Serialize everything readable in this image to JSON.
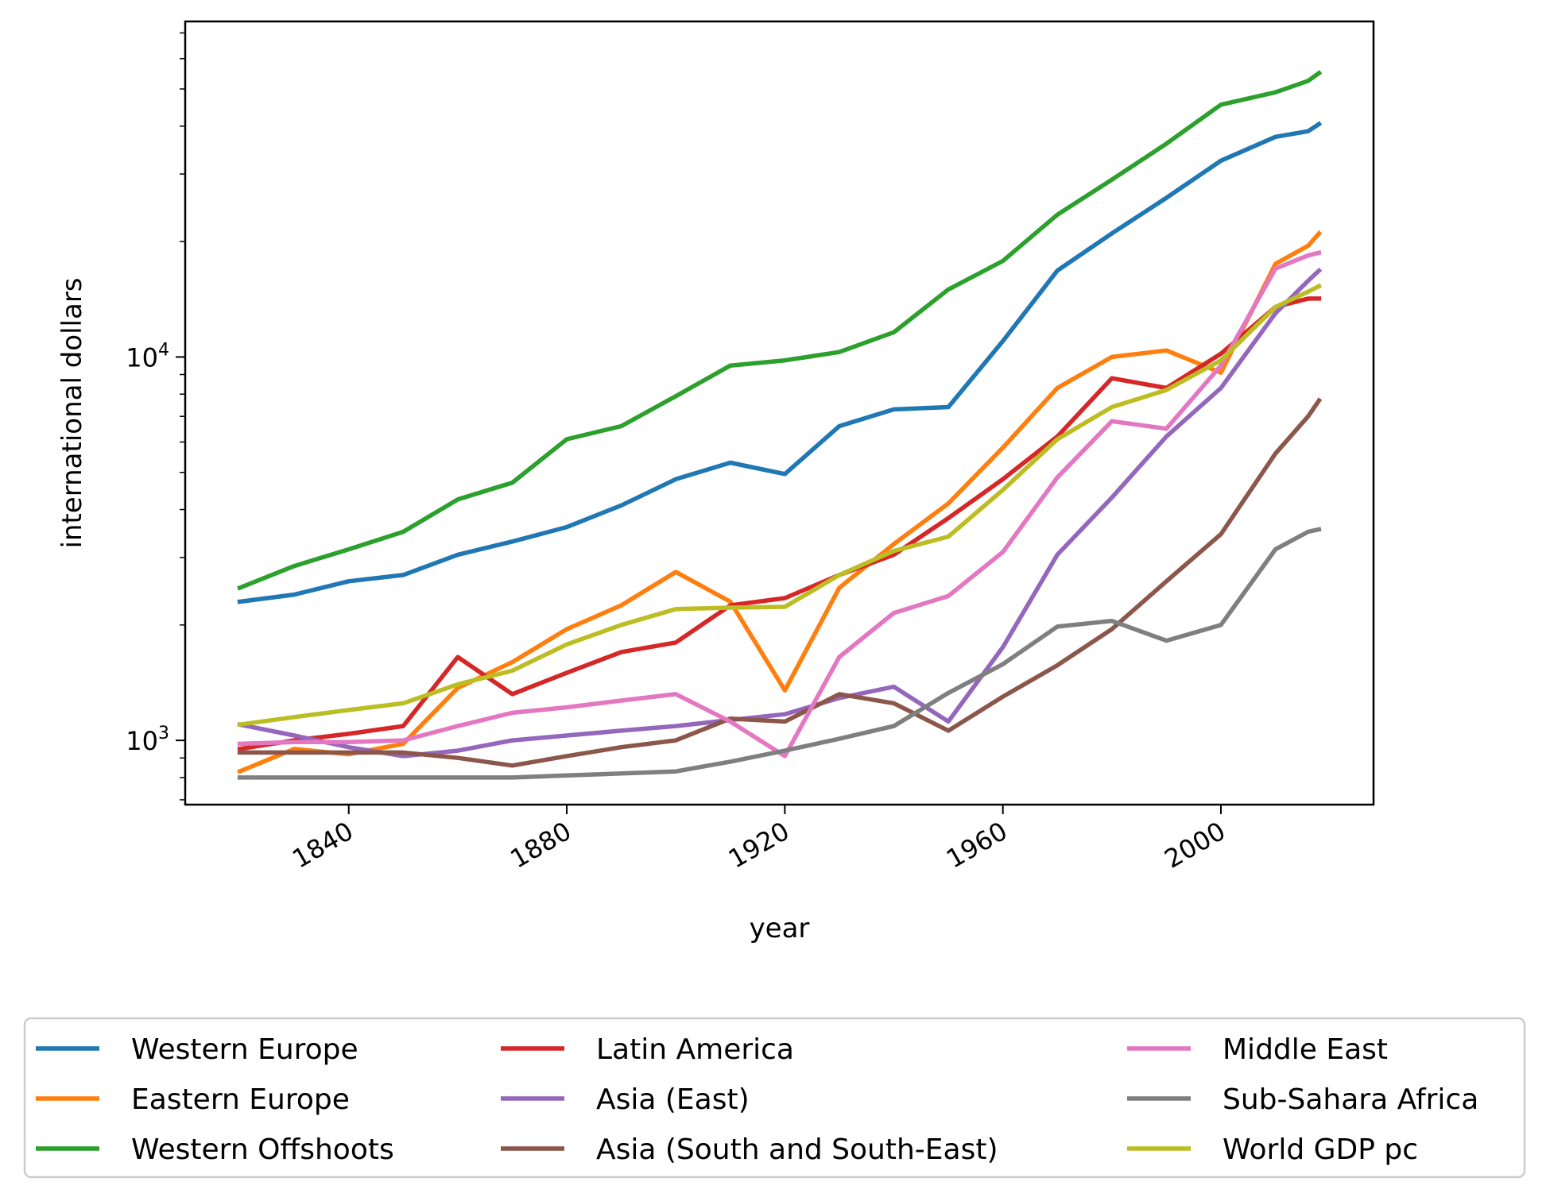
{
  "chart_data": {
    "type": "line",
    "title": "",
    "xlabel": "year",
    "ylabel": "international dollars",
    "yscale": "log",
    "xlim": [
      1810,
      2028
    ],
    "ylim": [
      680,
      75000
    ],
    "xticks": [
      1840,
      1880,
      1920,
      1960,
      2000
    ],
    "xtick_labels": [
      "1840",
      "1880",
      "1920",
      "1960",
      "2000"
    ],
    "xtick_rotation": 30,
    "yticks": [
      1000,
      10000
    ],
    "ytick_labels": [
      {
        "base": "10",
        "exp": "3"
      },
      {
        "base": "10",
        "exp": "4"
      }
    ],
    "grid": false,
    "legend": {
      "placement": "below",
      "columns": 3
    },
    "x": [
      1820,
      1830,
      1840,
      1850,
      1860,
      1870,
      1880,
      1890,
      1900,
      1910,
      1920,
      1930,
      1940,
      1950,
      1960,
      1970,
      1980,
      1990,
      2000,
      2010,
      2016,
      2018
    ],
    "series": [
      {
        "name": "Western Europe",
        "color": "#1f77b4",
        "values": [
          2300,
          2400,
          2600,
          2700,
          3050,
          3300,
          3600,
          4100,
          4800,
          5300,
          4950,
          6600,
          7300,
          7400,
          11000,
          16800,
          21000,
          26000,
          32500,
          37500,
          38800,
          40500
        ]
      },
      {
        "name": "Eastern Europe",
        "color": "#ff7f0e",
        "values": [
          830,
          950,
          920,
          980,
          1370,
          1600,
          1950,
          2250,
          2750,
          2300,
          1350,
          2500,
          3250,
          4150,
          5800,
          8300,
          10000,
          10400,
          9100,
          17500,
          19500,
          21000
        ]
      },
      {
        "name": "Western Offshoots",
        "color": "#2ca02c",
        "values": [
          2500,
          2850,
          3150,
          3500,
          4250,
          4700,
          6100,
          6600,
          7900,
          9500,
          9800,
          10300,
          11600,
          15000,
          17800,
          23500,
          29000,
          36000,
          45500,
          49000,
          52500,
          55000
        ]
      },
      {
        "name": "Latin America",
        "color": "#d62728",
        "values": [
          950,
          1000,
          1040,
          1090,
          1650,
          1320,
          1500,
          1700,
          1800,
          2250,
          2350,
          2700,
          3050,
          3800,
          4800,
          6200,
          8800,
          8300,
          10200,
          13500,
          14200,
          14200
        ]
      },
      {
        "name": "Asia (East)",
        "color": "#9467bd",
        "values": [
          1100,
          1030,
          960,
          910,
          940,
          1000,
          1030,
          1060,
          1090,
          1130,
          1170,
          1290,
          1380,
          1120,
          1750,
          3050,
          4300,
          6200,
          8300,
          13000,
          15800,
          16800
        ]
      },
      {
        "name": "Asia (South and South-East)",
        "color": "#8c564b",
        "values": [
          930,
          930,
          930,
          930,
          900,
          860,
          910,
          960,
          1000,
          1140,
          1120,
          1320,
          1250,
          1060,
          1300,
          1570,
          1950,
          2600,
          3450,
          5600,
          7000,
          7700
        ]
      },
      {
        "name": "Middle East",
        "color": "#e377c2",
        "values": [
          980,
          990,
          990,
          1000,
          1090,
          1180,
          1220,
          1270,
          1320,
          1120,
          910,
          1650,
          2150,
          2380,
          3100,
          4850,
          6800,
          6500,
          9500,
          17000,
          18400,
          18700
        ]
      },
      {
        "name": "Sub-Sahara Africa",
        "color": "#7f7f7f",
        "values": [
          800,
          800,
          800,
          800,
          800,
          800,
          810,
          820,
          830,
          880,
          940,
          1010,
          1090,
          1330,
          1580,
          1980,
          2050,
          1820,
          2000,
          3150,
          3500,
          3550
        ]
      },
      {
        "name": "World GDP pc",
        "color": "#bcbd22",
        "values": [
          1100,
          1150,
          1200,
          1250,
          1400,
          1520,
          1780,
          2000,
          2200,
          2220,
          2230,
          2700,
          3120,
          3400,
          4500,
          6100,
          7400,
          8200,
          9800,
          13500,
          14800,
          15300
        ]
      }
    ]
  }
}
